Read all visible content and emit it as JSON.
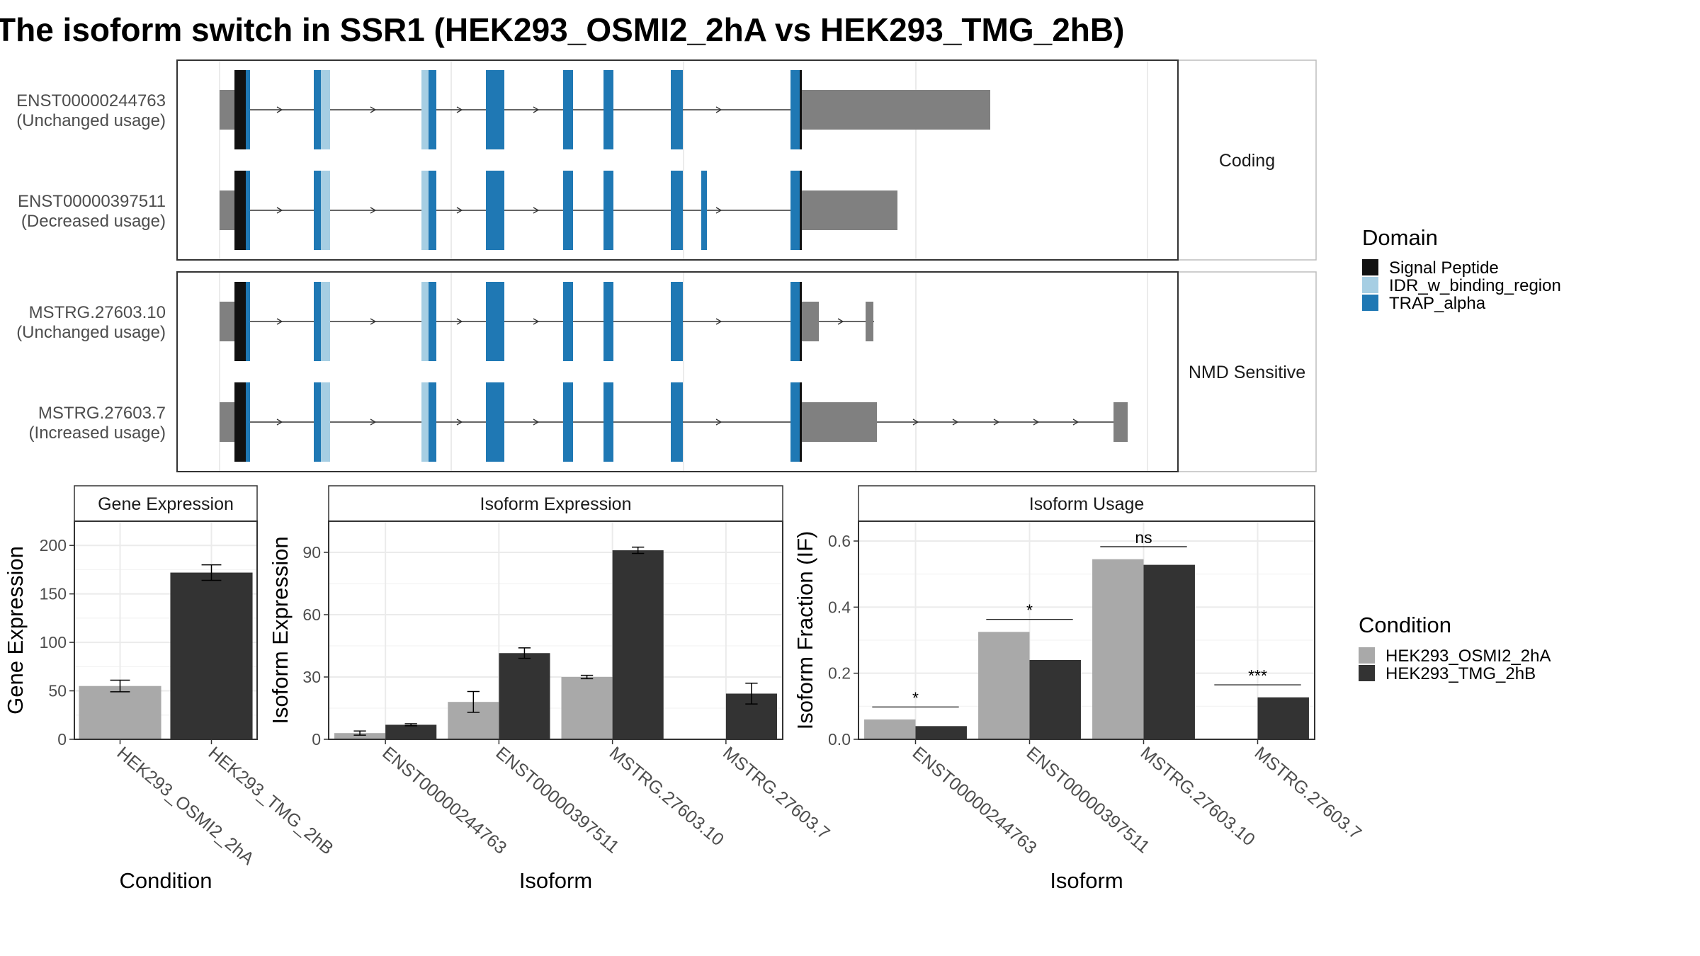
{
  "title": "The isoform switch in SSR1 (HEK293_OSMI2_2hA vs HEK293_TMG_2hB)",
  "structure": {
    "panels": [
      {
        "label": "Coding",
        "transcripts": [
          {
            "id": "ENST00000244763",
            "usage": "(Unchanged usage)",
            "variant": "long3utr"
          },
          {
            "id": "ENST00000397511",
            "usage": "(Decreased usage)",
            "variant": "extraExon"
          }
        ]
      },
      {
        "label": "NMD Sensitive",
        "transcripts": [
          {
            "id": "MSTRG.27603.10",
            "usage": "(Unchanged usage)",
            "variant": "shortTail"
          },
          {
            "id": "MSTRG.27603.7",
            "usage": "(Increased usage)",
            "variant": "longTail"
          }
        ]
      }
    ]
  },
  "legends": {
    "domain": {
      "title": "Domain",
      "items": [
        {
          "label": "Signal Peptide",
          "color": "#111111"
        },
        {
          "label": "IDR_w_binding_region",
          "color": "#a6cee3"
        },
        {
          "label": "TRAP_alpha",
          "color": "#1f78b4"
        }
      ]
    },
    "condition": {
      "title": "Condition",
      "items": [
        {
          "label": "HEK293_OSMI2_2hA",
          "color": "#a9a9a9"
        },
        {
          "label": "HEK293_TMG_2hB",
          "color": "#333333"
        }
      ]
    }
  },
  "chart_data": [
    {
      "type": "bar",
      "title": "Gene Expression",
      "xlabel": "Condition",
      "ylabel": "Gene Expression",
      "ylim": [
        0,
        225
      ],
      "yticks": [
        0,
        50,
        100,
        150,
        200
      ],
      "categories": [
        "HEK293_OSMI2_2hA",
        "HEK293_TMG_2hB"
      ],
      "values": [
        55,
        172
      ],
      "errors": [
        6,
        8
      ],
      "colors": [
        "#a9a9a9",
        "#333333"
      ]
    },
    {
      "type": "bar",
      "title": "Isoform Expression",
      "xlabel": "Isoform",
      "ylabel": "Isoform Expression",
      "ylim": [
        0,
        105
      ],
      "yticks": [
        0,
        30,
        60,
        90
      ],
      "categories": [
        "ENST00000244763",
        "ENST00000397511",
        "MSTRG.27603.10",
        "MSTRG.27603.7"
      ],
      "series": [
        {
          "condition": "HEK293_OSMI2_2hA",
          "values": [
            3,
            18,
            30,
            0
          ],
          "errors": [
            1,
            5,
            0.8,
            0
          ]
        },
        {
          "condition": "HEK293_TMG_2hB",
          "values": [
            7,
            41.5,
            91,
            22
          ],
          "errors": [
            0.5,
            2.5,
            1.5,
            5
          ]
        }
      ]
    },
    {
      "type": "bar",
      "title": "Isoform Usage",
      "xlabel": "Isoform",
      "ylabel": "Isoform Fraction (IF)",
      "ylim": [
        0,
        0.66
      ],
      "yticks": [
        "0.0",
        "0.2",
        "0.4",
        "0.6"
      ],
      "categories": [
        "ENST00000244763",
        "ENST00000397511",
        "MSTRG.27603.10",
        "MSTRG.27603.7"
      ],
      "series": [
        {
          "condition": "HEK293_OSMI2_2hA",
          "values": [
            0.06,
            0.325,
            0.545,
            0
          ]
        },
        {
          "condition": "HEK293_TMG_2hB",
          "values": [
            0.04,
            0.24,
            0.528,
            0.127
          ]
        }
      ],
      "significance": [
        "*",
        "*",
        "ns",
        "***"
      ]
    }
  ]
}
